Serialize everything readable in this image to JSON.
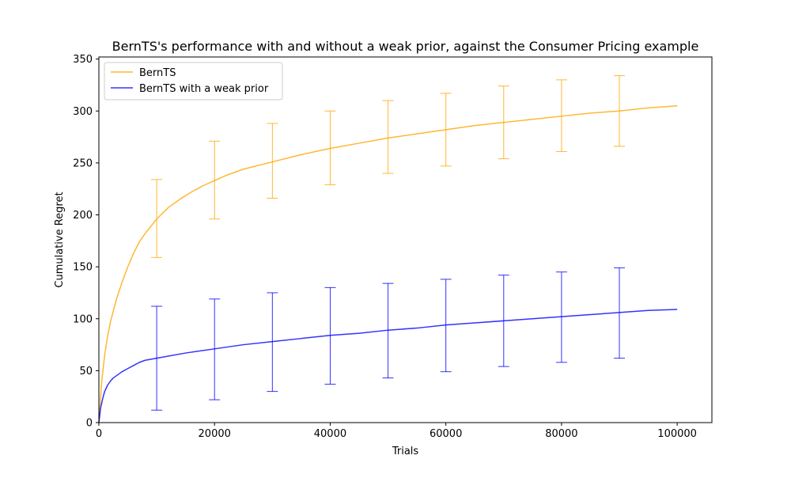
{
  "chart_data": {
    "type": "line",
    "title": "BernTS's performance with and without a weak prior, against the Consumer Pricing example",
    "xlabel": "Trials",
    "ylabel": "Cumulative Regret",
    "xlim": [
      0,
      106000
    ],
    "ylim": [
      0,
      352
    ],
    "xticks": [
      0,
      20000,
      40000,
      60000,
      80000,
      100000
    ],
    "yticks": [
      0,
      50,
      100,
      150,
      200,
      250,
      300,
      350
    ],
    "legend_position": "top-left",
    "grid": false,
    "series": [
      {
        "name": "BernTS",
        "color": "#FFA500",
        "x": [
          0,
          500,
          1000,
          1500,
          2000,
          3000,
          4000,
          5000,
          6000,
          7000,
          8000,
          9000,
          10000,
          12000,
          14000,
          16000,
          18000,
          20000,
          22000,
          25000,
          30000,
          35000,
          40000,
          45000,
          50000,
          55000,
          60000,
          65000,
          70000,
          75000,
          80000,
          85000,
          90000,
          95000,
          100000
        ],
        "y": [
          0,
          40,
          65,
          83,
          97,
          118,
          135,
          150,
          163,
          174,
          182,
          189,
          196,
          207,
          215,
          222,
          228,
          233,
          238,
          244,
          251,
          258,
          264,
          269,
          274,
          278,
          282,
          286,
          289,
          292,
          295,
          298,
          300,
          303,
          305
        ],
        "errorbars": {
          "x": [
            10000,
            20000,
            30000,
            40000,
            50000,
            60000,
            70000,
            80000,
            90000
          ],
          "lower": [
            159,
            196,
            216,
            229,
            240,
            247,
            254,
            261,
            266
          ],
          "upper": [
            234,
            271,
            288,
            300,
            310,
            317,
            324,
            330,
            334
          ]
        }
      },
      {
        "name": "BernTS with a weak prior",
        "color": "#0000FF",
        "x": [
          0,
          300,
          700,
          1000,
          1500,
          2000,
          2500,
          3000,
          4000,
          5000,
          6000,
          7000,
          8000,
          10000,
          15000,
          20000,
          25000,
          30000,
          35000,
          40000,
          45000,
          50000,
          55000,
          60000,
          65000,
          70000,
          75000,
          80000,
          85000,
          90000,
          95000,
          100000
        ],
        "y": [
          0,
          14,
          24,
          30,
          36,
          40,
          43,
          45,
          49,
          52,
          55,
          58,
          60,
          62,
          67,
          71,
          75,
          78,
          81,
          84,
          86,
          89,
          91,
          94,
          96,
          98,
          100,
          102,
          104,
          106,
          108,
          109
        ],
        "errorbars": {
          "x": [
            10000,
            20000,
            30000,
            40000,
            50000,
            60000,
            70000,
            80000,
            90000
          ],
          "lower": [
            12,
            22,
            30,
            37,
            43,
            49,
            54,
            58,
            62
          ],
          "upper": [
            112,
            119,
            125,
            130,
            134,
            138,
            142,
            145,
            149
          ]
        }
      }
    ]
  }
}
